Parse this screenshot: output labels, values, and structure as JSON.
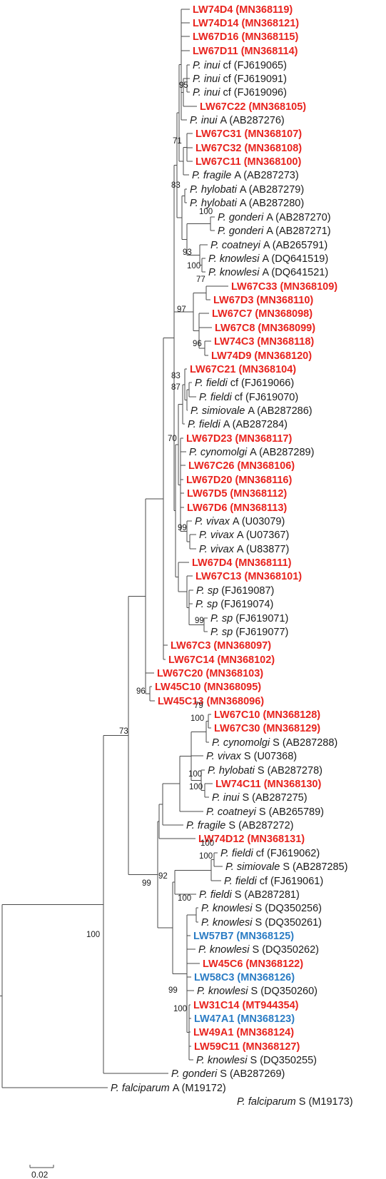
{
  "colors": {
    "highlight_red": "#e8231e",
    "highlight_blue": "#2b7cc4",
    "text": "#1a1a1a",
    "branch": "#4a4a4a"
  },
  "scale_bar": {
    "label": "0.02",
    "value": 0.02
  },
  "taxa": [
    {
      "id": "t0",
      "color": "red",
      "code": "LW74D4 (MN368119)"
    },
    {
      "id": "t1",
      "color": "red",
      "code": "LW74D14 (MN368121)"
    },
    {
      "id": "t2",
      "color": "red",
      "code": "LW67D16 (MN368115)"
    },
    {
      "id": "t3",
      "color": "red",
      "code": "LW67D11 (MN368114)"
    },
    {
      "id": "t4",
      "color": "black",
      "species": "P. inui",
      "suffix": " cf (FJ619065)"
    },
    {
      "id": "t5",
      "color": "black",
      "species": "P. inui",
      "suffix": " cf (FJ619091)"
    },
    {
      "id": "t6",
      "color": "black",
      "species": "P. inui",
      "suffix": " cf (FJ619096)"
    },
    {
      "id": "t7",
      "color": "red",
      "code": "LW67C22 (MN368105)"
    },
    {
      "id": "t8",
      "color": "black",
      "species": "P. inui",
      "suffix": " A (AB287276)"
    },
    {
      "id": "t9",
      "color": "red",
      "code": "LW67C31 (MN368107)"
    },
    {
      "id": "t10",
      "color": "red",
      "code": "LW67C32 (MN368108)"
    },
    {
      "id": "t11",
      "color": "red",
      "code": "LW67C11 (MN368100)"
    },
    {
      "id": "t12",
      "color": "black",
      "species": "P. fragile",
      "suffix": " A (AB287273)"
    },
    {
      "id": "t13",
      "color": "black",
      "species": "P. hylobati",
      "suffix": " A (AB287279)"
    },
    {
      "id": "t14",
      "color": "black",
      "species": "P. hylobati",
      "suffix": " A (AB287280)"
    },
    {
      "id": "t15",
      "color": "black",
      "species": "P. gonderi",
      "suffix": " A (AB287270)"
    },
    {
      "id": "t16",
      "color": "black",
      "species": "P. gonderi",
      "suffix": " A (AB287271)"
    },
    {
      "id": "t17",
      "color": "black",
      "species": "P. coatneyi",
      "suffix": " A (AB265791)"
    },
    {
      "id": "t18",
      "color": "black",
      "species": "P. knowlesi",
      "suffix": " A (DQ641519)"
    },
    {
      "id": "t19",
      "color": "black",
      "species": "P. knowlesi",
      "suffix": " A (DQ641521)"
    },
    {
      "id": "t20",
      "color": "red",
      "code": "LW67C33 (MN368109)"
    },
    {
      "id": "t21",
      "color": "red",
      "code": "LW67D3 (MN368110)"
    },
    {
      "id": "t22",
      "color": "red",
      "code": "LW67C7 (MN368098)"
    },
    {
      "id": "t23",
      "color": "red",
      "code": "LW67C8 (MN368099)"
    },
    {
      "id": "t24",
      "color": "red",
      "code": "LW74C3 (MN368118)"
    },
    {
      "id": "t25",
      "color": "red",
      "code": "LW74D9 (MN368120)"
    },
    {
      "id": "t26",
      "color": "red",
      "code": "LW67C21 (MN368104)"
    },
    {
      "id": "t27",
      "color": "black",
      "species": "P. fieldi",
      "suffix": " cf (FJ619066)"
    },
    {
      "id": "t28",
      "color": "black",
      "species": "P. fieldi",
      "suffix": " cf (FJ619070)"
    },
    {
      "id": "t29",
      "color": "black",
      "species": "P. simiovale",
      "suffix": " A (AB287286)"
    },
    {
      "id": "t30",
      "color": "black",
      "species": "P. fieldi",
      "suffix": " A (AB287284)"
    },
    {
      "id": "t31",
      "color": "red",
      "code": "LW67D23 (MN368117)"
    },
    {
      "id": "t32",
      "color": "black",
      "species": "P. cynomolgi",
      "suffix": " A (AB287289)"
    },
    {
      "id": "t33",
      "color": "red",
      "code": "LW67C26 (MN368106)"
    },
    {
      "id": "t34",
      "color": "red",
      "code": "LW67D20 (MN368116)"
    },
    {
      "id": "t35",
      "color": "red",
      "code": "LW67D5 (MN368112)"
    },
    {
      "id": "t36",
      "color": "red",
      "code": "LW67D6 (MN368113)"
    },
    {
      "id": "t37",
      "color": "black",
      "species": "P. vivax",
      "suffix": " A (U03079)"
    },
    {
      "id": "t38",
      "color": "black",
      "species": "P. vivax",
      "suffix": " A (U07367)"
    },
    {
      "id": "t39",
      "color": "black",
      "species": "P. vivax",
      "suffix": " A (U83877)"
    },
    {
      "id": "t40",
      "color": "red",
      "code": "LW67D4 (MN368111)"
    },
    {
      "id": "t41",
      "color": "red",
      "code": "LW67C13 (MN368101)"
    },
    {
      "id": "t42",
      "color": "black",
      "species": "P. sp",
      "suffix": " (FJ619087)"
    },
    {
      "id": "t43",
      "color": "black",
      "species": "P. sp",
      "suffix": " (FJ619074)"
    },
    {
      "id": "t44",
      "color": "black",
      "species": "P. sp",
      "suffix": " (FJ619071)"
    },
    {
      "id": "t45",
      "color": "black",
      "species": "P. sp",
      "suffix": " (FJ619077)"
    },
    {
      "id": "t46",
      "color": "red",
      "code": "LW67C3 (MN368097)"
    },
    {
      "id": "t47",
      "color": "red",
      "code": "LW67C14 (MN368102)"
    },
    {
      "id": "t48",
      "color": "red",
      "code": "LW67C20 (MN368103)"
    },
    {
      "id": "t49",
      "color": "red",
      "code": "LW45C10 (MN368095)"
    },
    {
      "id": "t50",
      "color": "red",
      "code": "LW45C13 (MN368096)"
    },
    {
      "id": "t51",
      "color": "red",
      "code": "LW67C10 (MN368128)"
    },
    {
      "id": "t52",
      "color": "red",
      "code": "LW67C30 (MN368129)"
    },
    {
      "id": "t53",
      "color": "black",
      "species": "P. cynomolgi",
      "suffix": " S (AB287288)"
    },
    {
      "id": "t54",
      "color": "black",
      "species": "P. vivax",
      "suffix": " S (U07368)"
    },
    {
      "id": "t55",
      "color": "black",
      "species": "P. hylobati",
      "suffix": " S (AB287278)"
    },
    {
      "id": "t56",
      "color": "red",
      "code": "LW74C11 (MN368130)"
    },
    {
      "id": "t57",
      "color": "black",
      "species": "P. inui",
      "suffix": " S (AB287275)"
    },
    {
      "id": "t58",
      "color": "black",
      "species": "P. coatneyi",
      "suffix": " S (AB265789)"
    },
    {
      "id": "t59",
      "color": "black",
      "species": "P. fragile",
      "suffix": " S (AB287272)"
    },
    {
      "id": "t60",
      "color": "red",
      "code": "LW74D12 (MN368131)"
    },
    {
      "id": "t61",
      "color": "black",
      "species": "P. fieldi",
      "suffix": " cf (FJ619062)"
    },
    {
      "id": "t62",
      "color": "black",
      "species": "P. simiovale",
      "suffix": " S (AB287285)"
    },
    {
      "id": "t63",
      "color": "black",
      "species": "P. fieldi",
      "suffix": " cf (FJ619061)"
    },
    {
      "id": "t64",
      "color": "black",
      "species": "P. fieldi",
      "suffix": " S (AB287281)"
    },
    {
      "id": "t65",
      "color": "black",
      "species": "P. knowlesi",
      "suffix": " S (DQ350256)"
    },
    {
      "id": "t66",
      "color": "black",
      "species": "P. knowlesi",
      "suffix": " S (DQ350261)"
    },
    {
      "id": "t67",
      "color": "blue",
      "code": "LW57B7 (MN368125)"
    },
    {
      "id": "t68",
      "color": "black",
      "species": "P. knowlesi",
      "suffix": " S (DQ350262)"
    },
    {
      "id": "t69",
      "color": "red",
      "code": "LW45C6 (MN368122)"
    },
    {
      "id": "t70",
      "color": "blue",
      "code": "LW58C3 (MN368126)"
    },
    {
      "id": "t71",
      "color": "black",
      "species": "P. knowlesi",
      "suffix": " S (DQ350260)"
    },
    {
      "id": "t72",
      "color": "red",
      "code": "LW31C14 (MT944354)"
    },
    {
      "id": "t73",
      "color": "blue",
      "code": "LW47A1 (MN368123)"
    },
    {
      "id": "t74",
      "color": "red",
      "code": "LW49A1 (MN368124)"
    },
    {
      "id": "t75",
      "color": "red",
      "code": "LW59C11 (MN368127)"
    },
    {
      "id": "t76",
      "color": "black",
      "species": "P. knowlesi",
      "suffix": " S (DQ350255)"
    },
    {
      "id": "t77",
      "color": "black",
      "species": "P. gonderi",
      "suffix": " S (AB287269)"
    },
    {
      "id": "t78",
      "color": "black",
      "species": "P. falciparum",
      "suffix": " A (M19172)"
    },
    {
      "id": "t79",
      "color": "black",
      "species": "P. falciparum",
      "suffix": " S (M19173)"
    }
  ],
  "bootstrap_values": [
    {
      "id": "b95",
      "value": "95"
    },
    {
      "id": "b71",
      "value": "71"
    },
    {
      "id": "b83a",
      "value": "83"
    },
    {
      "id": "b100gon",
      "value": "100"
    },
    {
      "id": "b93",
      "value": "93"
    },
    {
      "id": "b100kn",
      "value": "100"
    },
    {
      "id": "b77",
      "value": "77"
    },
    {
      "id": "b97",
      "value": "97"
    },
    {
      "id": "b96a",
      "value": "96"
    },
    {
      "id": "b83b",
      "value": "83"
    },
    {
      "id": "b87",
      "value": "87"
    },
    {
      "id": "b70",
      "value": "70"
    },
    {
      "id": "b99viv",
      "value": "99"
    },
    {
      "id": "b99sp",
      "value": "99"
    },
    {
      "id": "b96b",
      "value": "96"
    },
    {
      "id": "b73",
      "value": "73"
    },
    {
      "id": "b79",
      "value": "79"
    },
    {
      "id": "b100c30",
      "value": "100"
    },
    {
      "id": "b100hyl",
      "value": "100"
    },
    {
      "id": "b100inui",
      "value": "100"
    },
    {
      "id": "b100fc",
      "value": "100"
    },
    {
      "id": "b100sim",
      "value": "100"
    },
    {
      "id": "b99s",
      "value": "99"
    },
    {
      "id": "b92",
      "value": "92"
    },
    {
      "id": "b100kS",
      "value": "100"
    },
    {
      "id": "b99kn",
      "value": "99"
    },
    {
      "id": "b100kn2",
      "value": "100"
    },
    {
      "id": "b100root",
      "value": "100"
    }
  ]
}
